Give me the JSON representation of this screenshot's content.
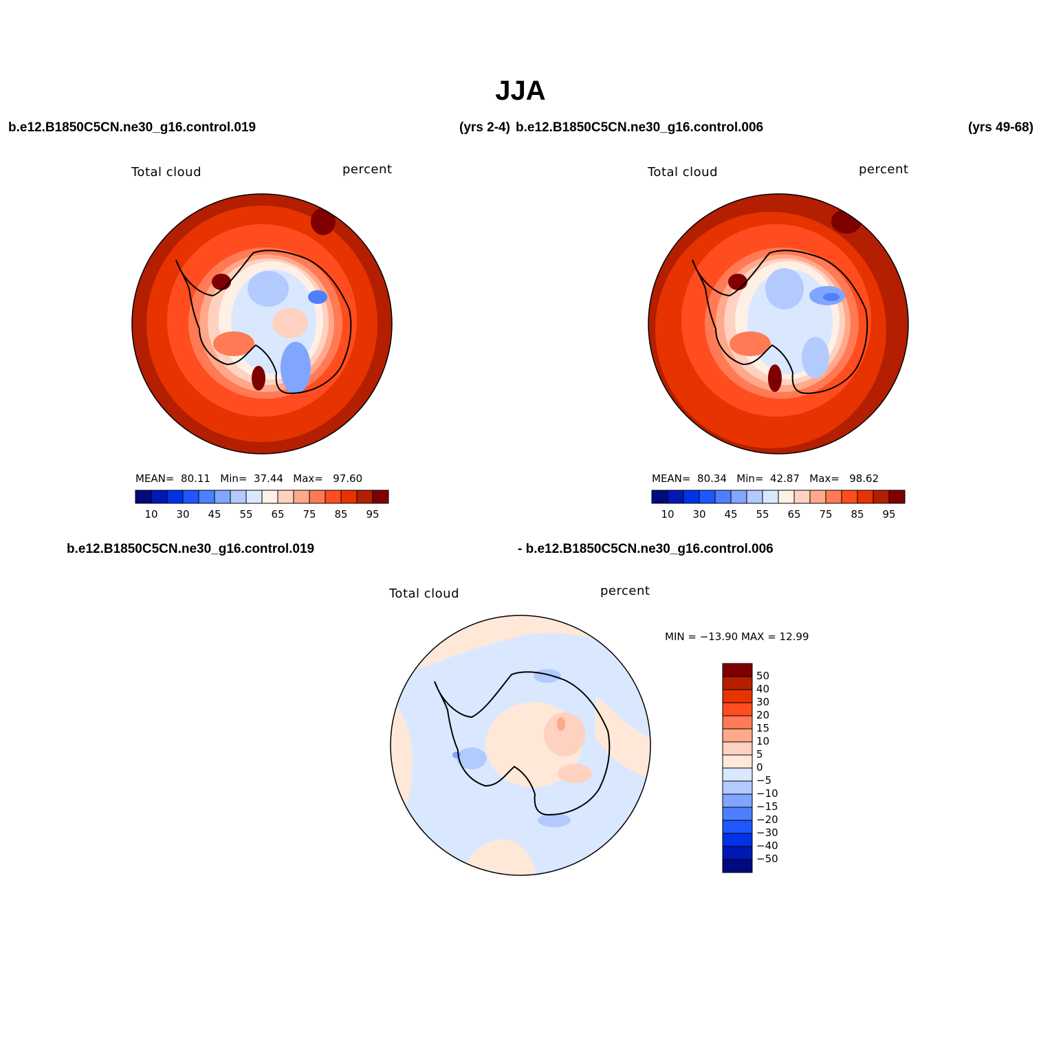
{
  "title": "JJA",
  "header": {
    "case_left": "b.e12.B1850C5CN.ne30_g16.control.019",
    "years_left": "(yrs 2-4)",
    "case_right": "b.e12.B1850C5CN.ne30_g16.control.006",
    "years_right": "(yrs 49-68)"
  },
  "diff_header": {
    "left": "b.e12.B1850C5CN.ne30_g16.control.019",
    "right": "- b.e12.B1850C5CN.ne30_g16.control.006"
  },
  "colors": {
    "abs_scale": [
      "#000a7f",
      "#0019b3",
      "#0033e6",
      "#1f57ff",
      "#4d7fff",
      "#80a6ff",
      "#b3caff",
      "#d9e8ff",
      "#fff0e6",
      "#ffd1c0",
      "#ffa98a",
      "#ff7a55",
      "#ff4d1f",
      "#e63300",
      "#b31f00",
      "#7f0000"
    ],
    "diff_scale": [
      "#000a7f",
      "#0019b3",
      "#0033e6",
      "#1f57ff",
      "#4d7fff",
      "#80a6ff",
      "#b3caff",
      "#d9e8ff",
      "#ffe8d8",
      "#ffd1c0",
      "#ffa98a",
      "#ff7a55",
      "#ff4d1f",
      "#e63300",
      "#b31f00",
      "#7f0000"
    ]
  },
  "chart_data": [
    {
      "type": "heatmap",
      "projection": "south polar stereographic",
      "title": "Total cloud",
      "units": "percent",
      "mean_label": "MEAN=",
      "mean": "80.11",
      "min_label": "Min=",
      "min": "37.44",
      "max_label": "Max=",
      "max": "97.60",
      "colorbar_ticks": [
        "10",
        "30",
        "45",
        "55",
        "65",
        "75",
        "85",
        "95"
      ]
    },
    {
      "type": "heatmap",
      "projection": "south polar stereographic",
      "title": "Total cloud",
      "units": "percent",
      "mean_label": "MEAN=",
      "mean": "80.34",
      "min_label": "Min=",
      "min": "42.87",
      "max_label": "Max=",
      "max": "98.62",
      "colorbar_ticks": [
        "10",
        "30",
        "45",
        "55",
        "65",
        "75",
        "85",
        "95"
      ]
    },
    {
      "type": "heatmap",
      "projection": "south polar stereographic",
      "title": "Total cloud",
      "units": "percent",
      "minmax_label": "MIN = −13.90  MAX =   12.99",
      "colorbar_ticks": [
        "50",
        "40",
        "30",
        "20",
        "15",
        "10",
        "5",
        "0",
        "−5",
        "−10",
        "−15",
        "−20",
        "−30",
        "−40",
        "−50"
      ]
    }
  ]
}
